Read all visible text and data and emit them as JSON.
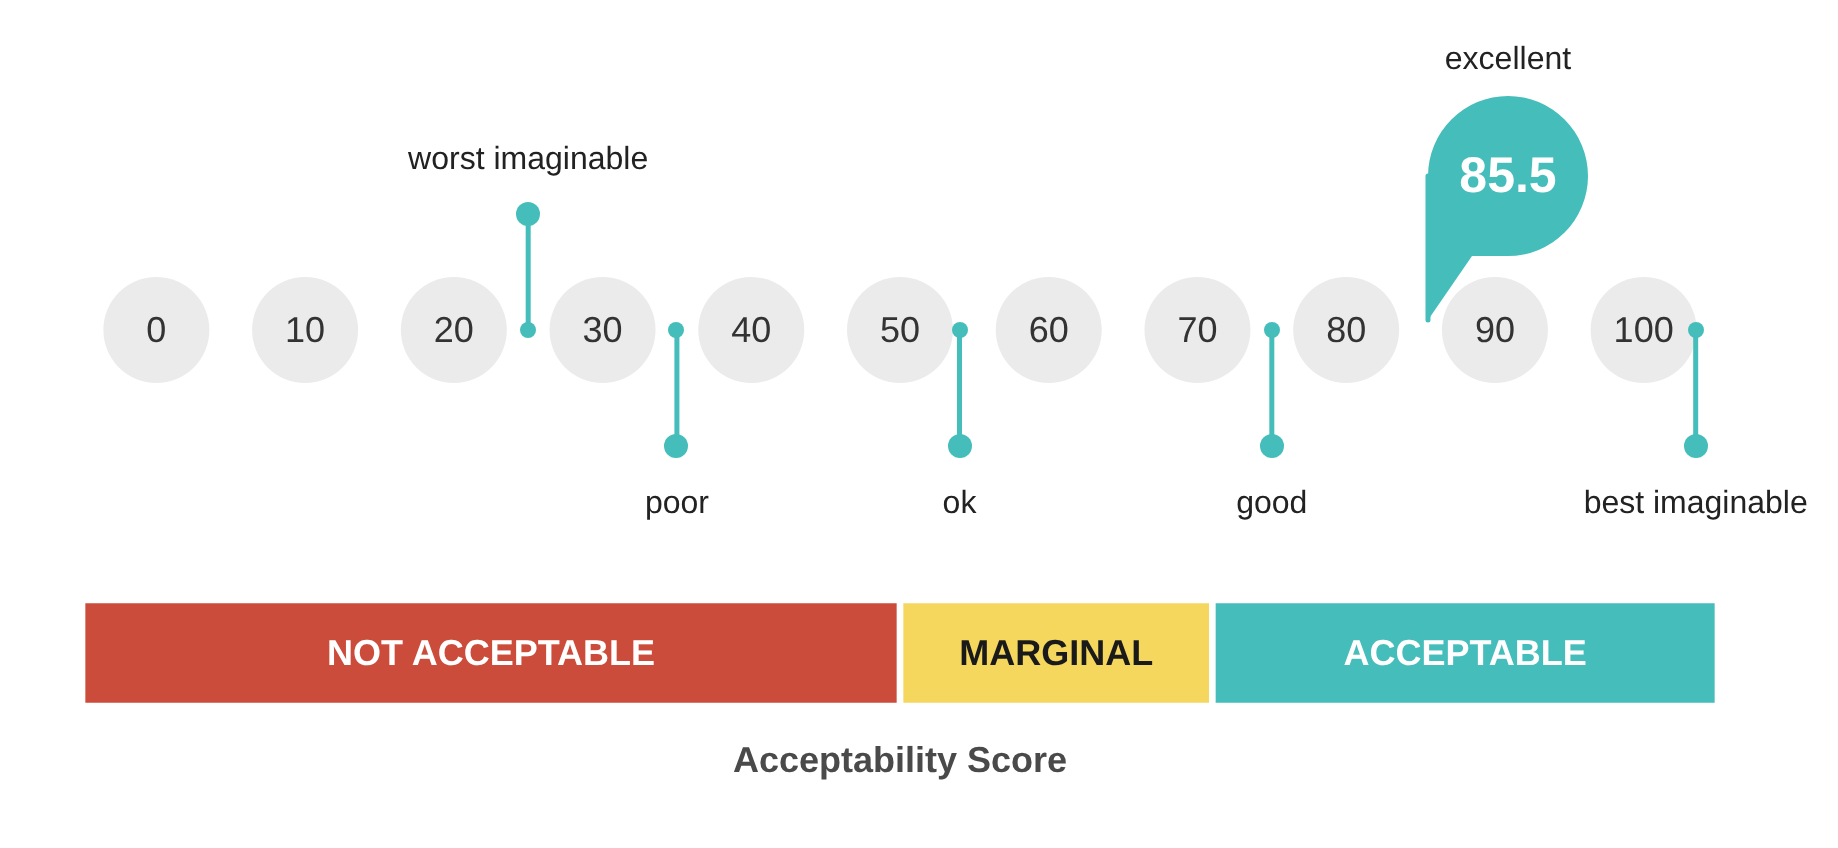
{
  "chart_data": {
    "type": "bar",
    "orientation": "horizontal",
    "categories": [
      null
    ],
    "series": [
      {
        "name": "NOT ACCEPTABLE",
        "color": "#cc4c3b",
        "values": [
          55
        ],
        "base": [
          -5
        ]
      },
      {
        "name": "MARGINAL",
        "color": "#f5d75e",
        "values": [
          21
        ],
        "base": [
          50
        ]
      },
      {
        "name": "ACCEPTABLE",
        "color": "#45bdbb",
        "values": [
          34
        ],
        "base": [
          71
        ]
      }
    ],
    "xlim": [
      -5,
      105
    ],
    "xticks": [
      0,
      10,
      20,
      30,
      40,
      50,
      60,
      70,
      80,
      90,
      100
    ],
    "ref_lines": [
      {
        "axis": "x",
        "value": 25,
        "label": "worst imaginable",
        "color": "#45bdbb"
      },
      {
        "axis": "x",
        "value": 35,
        "label": "poor",
        "color": "#45bdbb"
      },
      {
        "axis": "x",
        "value": 54,
        "label": "ok",
        "color": "#45bdbb"
      },
      {
        "axis": "x",
        "value": 75,
        "label": "good",
        "color": "#45bdbb"
      },
      {
        "axis": "x",
        "value": 85.5,
        "label": "85.5",
        "color": "#45bdbb"
      },
      {
        "axis": "x",
        "value": 103.5,
        "label": "best imaginable",
        "color": "#45bdbb"
      }
    ],
    "annotations": [
      "excellent",
      "Acceptability Score"
    ]
  }
}
